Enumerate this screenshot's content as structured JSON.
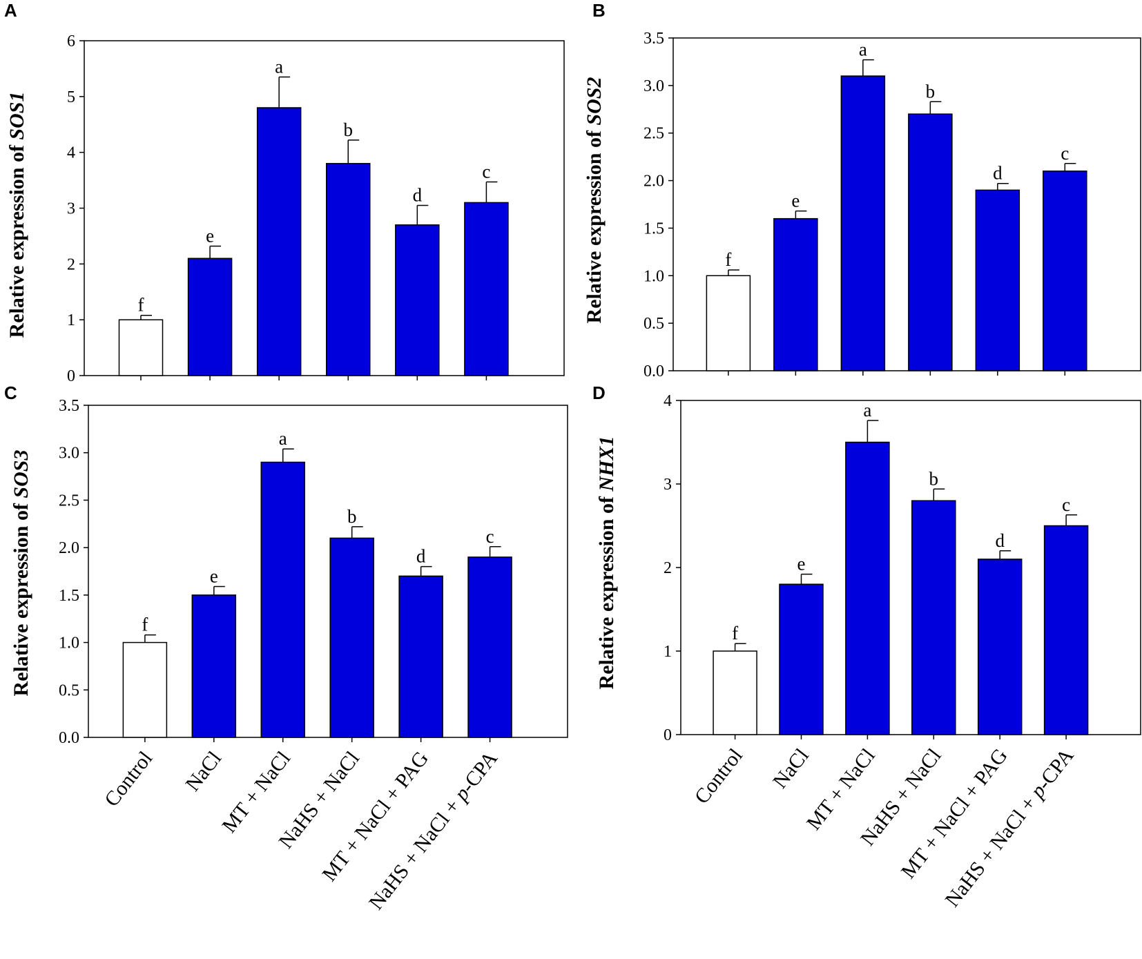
{
  "chart_data": [
    {
      "panel": "A",
      "type": "bar",
      "gene": "SOS1",
      "ylabel_prefix": "Relative expression of ",
      "ylabel_gene": "SOS1",
      "categories": [
        "Control",
        "NaCl",
        "MT + NaCl",
        "NaHS + NaCl",
        "MT + NaCl + PAG",
        "NaHS + NaCl + p-CPA"
      ],
      "values": [
        1.0,
        2.1,
        4.8,
        3.8,
        2.7,
        3.1
      ],
      "errors": [
        0.08,
        0.22,
        0.55,
        0.42,
        0.35,
        0.37
      ],
      "letters": [
        "f",
        "e",
        "a",
        "b",
        "d",
        "c"
      ],
      "colors": [
        "#ffffff",
        "#0000dd",
        "#0000dd",
        "#0000dd",
        "#0000dd",
        "#0000dd"
      ],
      "ylim": [
        0,
        6
      ],
      "yticks": [
        "0",
        "1",
        "2",
        "3",
        "4",
        "5",
        "6"
      ],
      "show_categories": false
    },
    {
      "panel": "B",
      "type": "bar",
      "gene": "SOS2",
      "ylabel_prefix": "Relative expression of ",
      "ylabel_gene": "SOS2",
      "categories": [
        "Control",
        "NaCl",
        "MT + NaCl",
        "NaHS + NaCl",
        "MT + NaCl + PAG",
        "NaHS + NaCl + p-CPA"
      ],
      "values": [
        1.0,
        1.6,
        3.1,
        2.7,
        1.9,
        2.1
      ],
      "errors": [
        0.06,
        0.08,
        0.17,
        0.13,
        0.07,
        0.08
      ],
      "letters": [
        "f",
        "e",
        "a",
        "b",
        "d",
        "c"
      ],
      "colors": [
        "#ffffff",
        "#0000dd",
        "#0000dd",
        "#0000dd",
        "#0000dd",
        "#0000dd"
      ],
      "ylim": [
        0,
        3.5
      ],
      "yticks": [
        "0.0",
        "0.5",
        "1.0",
        "1.5",
        "2.0",
        "2.5",
        "3.0",
        "3.5"
      ],
      "show_categories": false
    },
    {
      "panel": "C",
      "type": "bar",
      "gene": "SOS3",
      "ylabel_prefix": "Relative expression of ",
      "ylabel_gene": "SOS3",
      "categories": [
        "Control",
        "NaCl",
        "MT + NaCl",
        "NaHS + NaCl",
        "MT + NaCl + PAG",
        "NaHS + NaCl + p-CPA"
      ],
      "values": [
        1.0,
        1.5,
        2.9,
        2.1,
        1.7,
        1.9
      ],
      "errors": [
        0.08,
        0.09,
        0.14,
        0.12,
        0.1,
        0.11
      ],
      "letters": [
        "f",
        "e",
        "a",
        "b",
        "d",
        "c"
      ],
      "colors": [
        "#ffffff",
        "#0000dd",
        "#0000dd",
        "#0000dd",
        "#0000dd",
        "#0000dd"
      ],
      "ylim": [
        0,
        3.5
      ],
      "yticks": [
        "0.0",
        "0.5",
        "1.0",
        "1.5",
        "2.0",
        "2.5",
        "3.0",
        "3.5"
      ],
      "show_categories": true
    },
    {
      "panel": "D",
      "type": "bar",
      "gene": "NHX1",
      "ylabel_prefix": "Relative expression of ",
      "ylabel_gene": "NHX1",
      "categories": [
        "Control",
        "NaCl",
        "MT + NaCl",
        "NaHS + NaCl",
        "MT + NaCl + PAG",
        "NaHS + NaCl + p-CPA"
      ],
      "values": [
        1.0,
        1.8,
        3.5,
        2.8,
        2.1,
        2.5
      ],
      "errors": [
        0.09,
        0.12,
        0.26,
        0.14,
        0.1,
        0.13
      ],
      "letters": [
        "f",
        "e",
        "a",
        "b",
        "d",
        "c"
      ],
      "colors": [
        "#ffffff",
        "#0000dd",
        "#0000dd",
        "#0000dd",
        "#0000dd",
        "#0000dd"
      ],
      "ylim": [
        0,
        4
      ],
      "yticks": [
        "0",
        "1",
        "2",
        "3",
        "4"
      ],
      "show_categories": true
    }
  ]
}
